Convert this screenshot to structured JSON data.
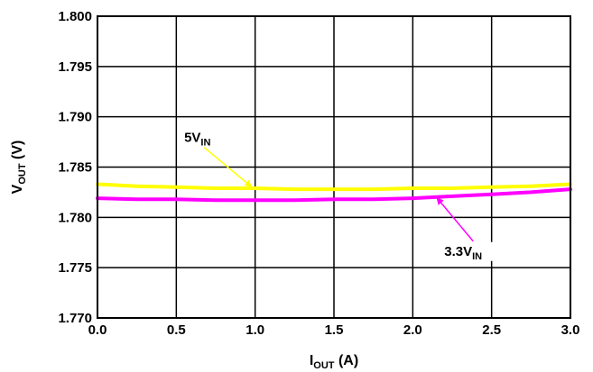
{
  "chart_data": {
    "type": "line",
    "xlabel": {
      "main": "I",
      "sub": "OUT",
      "unit": " (A)"
    },
    "ylabel": {
      "main": "V",
      "sub": "OUT",
      "unit": " (V)"
    },
    "xlim": [
      0.0,
      3.0
    ],
    "ylim": [
      1.77,
      1.8
    ],
    "x_ticks": [
      "0.0",
      "0.5",
      "1.0",
      "1.5",
      "2.0",
      "2.5",
      "3.0"
    ],
    "y_ticks": [
      "1.800",
      "1.795",
      "1.790",
      "1.785",
      "1.780",
      "1.775",
      "1.770"
    ],
    "grid": true,
    "series": [
      {
        "label_main": "5V",
        "label_sub": "IN",
        "color": "#ffff00",
        "x": [
          0.0,
          0.25,
          0.5,
          0.75,
          1.0,
          1.25,
          1.5,
          1.75,
          2.0,
          2.25,
          2.5,
          2.75,
          3.0
        ],
        "y": [
          1.7833,
          1.7831,
          1.783,
          1.7829,
          1.7829,
          1.7828,
          1.7828,
          1.7828,
          1.7829,
          1.7829,
          1.783,
          1.7831,
          1.7833
        ],
        "annotation": {
          "x": 0.98,
          "y": 1.783,
          "text_x": 0.55,
          "text_y": 1.7875
        }
      },
      {
        "label_main": "3.3V",
        "label_sub": "IN",
        "color": "#ff00ff",
        "x": [
          0.0,
          0.25,
          0.5,
          0.75,
          1.0,
          1.25,
          1.5,
          1.75,
          2.0,
          2.25,
          2.5,
          2.75,
          3.0
        ],
        "y": [
          1.7819,
          1.7818,
          1.7818,
          1.7817,
          1.7817,
          1.7817,
          1.7818,
          1.7818,
          1.7819,
          1.7821,
          1.7823,
          1.7825,
          1.7828
        ],
        "annotation": {
          "x": 2.15,
          "y": 1.782,
          "text_x": 2.2,
          "text_y": 1.7762
        }
      }
    ]
  }
}
